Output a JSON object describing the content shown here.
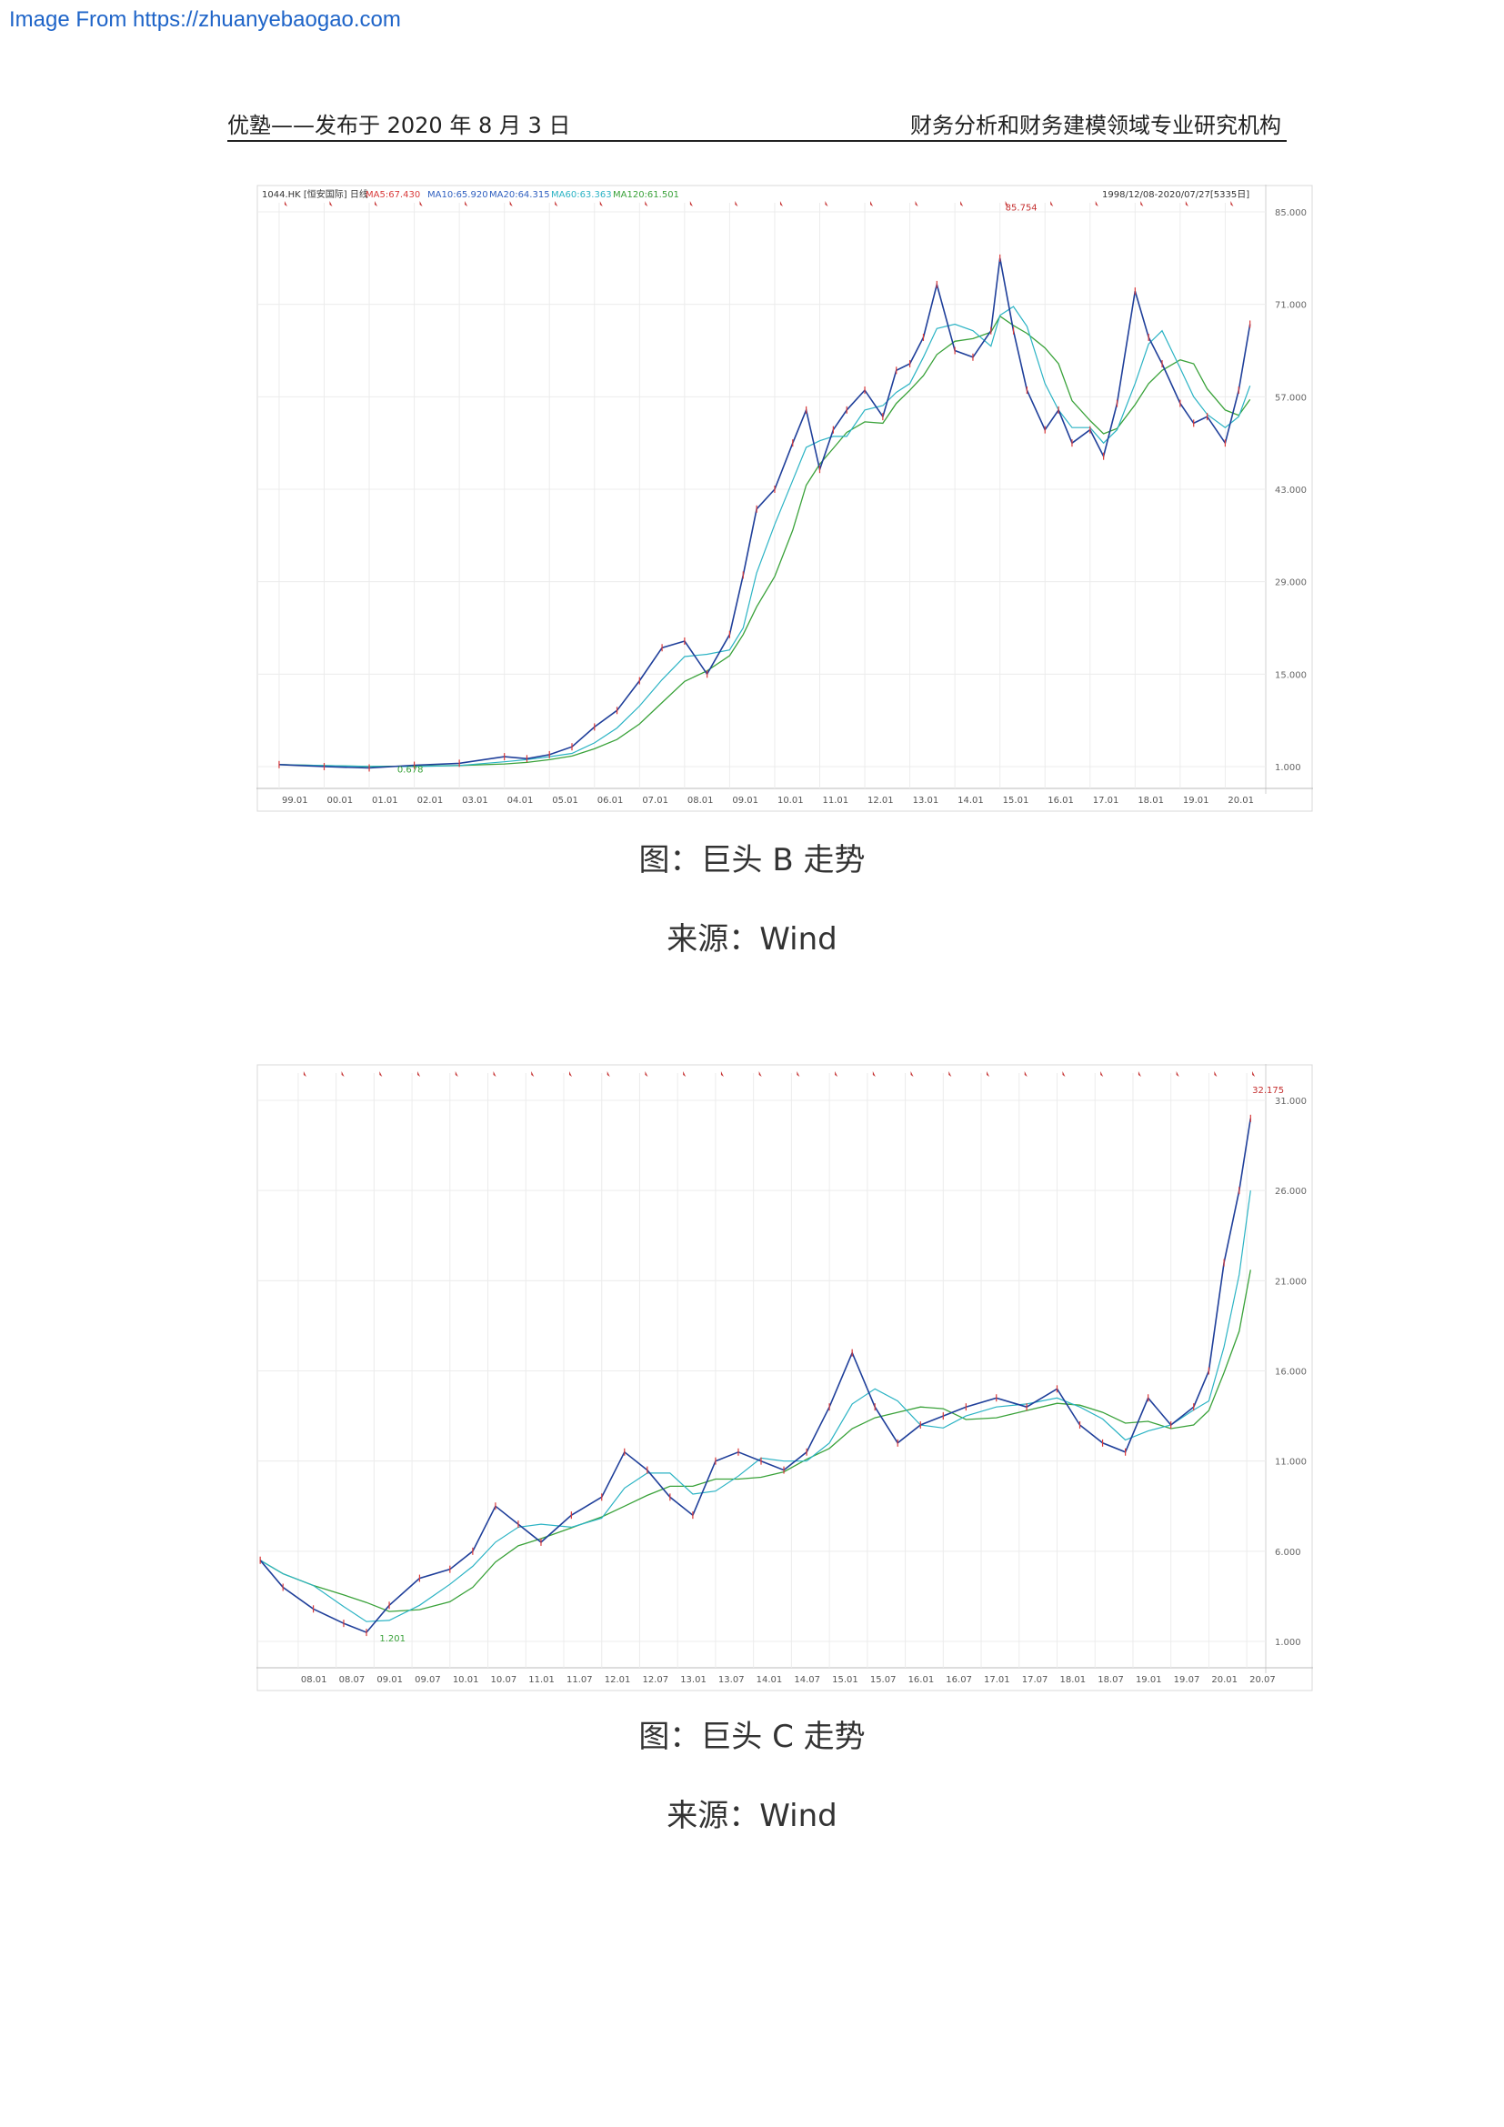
{
  "watermark": "Image From https://zhuanyebaogao.com",
  "header": {
    "left": "优塾——发布于 2020 年 8 月 3 日",
    "right": "财务分析和财务建模领域专业研究机构"
  },
  "figures": [
    {
      "caption": "图：巨头 B 走势",
      "source_label": "来源：",
      "source_value": "Wind"
    },
    {
      "caption": "图：巨头 C 走势",
      "source_label": "来源：",
      "source_value": "Wind"
    }
  ],
  "chart_data": [
    {
      "type": "line",
      "chart_header": {
        "ticker": "1044.HK",
        "name": "[恒安国际]",
        "period": "日线",
        "ma": [
          "MA5:67.430",
          "MA10:65.920",
          "MA20:64.315",
          "MA60:63.363",
          "MA120:61.501"
        ],
        "range": "1998/12/08-2020/07/27[5335日]"
      },
      "title": "",
      "xlabel": "",
      "ylabel": "",
      "x_ticks": [
        "99.01",
        "00.01",
        "01.01",
        "02.01",
        "03.01",
        "04.01",
        "05.01",
        "06.01",
        "07.01",
        "08.01",
        "09.01",
        "10.01",
        "11.01",
        "12.01",
        "13.01",
        "14.01",
        "15.01",
        "16.01",
        "17.01",
        "18.01",
        "19.01",
        "20.01"
      ],
      "y_ticks": [
        "85.000",
        "71.000",
        "57.000",
        "43.000",
        "29.000",
        "15.000",
        "1.000"
      ],
      "ylim": [
        1,
        85
      ],
      "x": [
        1999.0,
        2000.0,
        2001.0,
        2002.0,
        2003.0,
        2004.0,
        2004.5,
        2005.0,
        2005.5,
        2006.0,
        2006.5,
        2007.0,
        2007.5,
        2008.0,
        2008.5,
        2009.0,
        2009.3,
        2009.6,
        2010.0,
        2010.4,
        2010.7,
        2011.0,
        2011.3,
        2011.6,
        2012.0,
        2012.4,
        2012.7,
        2013.0,
        2013.3,
        2013.6,
        2014.0,
        2014.4,
        2014.8,
        2015.0,
        2015.3,
        2015.6,
        2016.0,
        2016.3,
        2016.6,
        2017.0,
        2017.3,
        2017.6,
        2018.0,
        2018.3,
        2018.6,
        2019.0,
        2019.3,
        2019.6,
        2020.0,
        2020.3,
        2020.55
      ],
      "series": [
        {
          "values": [
            1.3,
            1.0,
            0.8,
            1.2,
            1.5,
            2.5,
            2.2,
            2.8,
            4.0,
            7.0,
            9.5,
            14.0,
            19.0,
            20.0,
            15.0,
            21.0,
            30.0,
            40.0,
            43.0,
            50.0,
            55.0,
            46.0,
            52.0,
            55.0,
            58.0,
            54.0,
            61.0,
            62.0,
            66.0,
            74.0,
            64.0,
            63.0,
            67.0,
            78.0,
            67.0,
            58.0,
            52.0,
            55.0,
            50.0,
            52.0,
            48.0,
            56.0,
            73.0,
            66.0,
            62.0,
            56.0,
            53.0,
            54.0,
            50.0,
            58.0,
            68.0
          ]
        }
      ],
      "annotations": [
        {
          "text": "85.754",
          "x": 2015.0,
          "y": 85.754
        },
        {
          "text": "0.678",
          "x": 2001.5,
          "y": 0.678
        }
      ],
      "colors": {
        "price": "#1f3f9a",
        "ma_short": "#2bb3c4",
        "ma_long": "#3aa23a",
        "up": "#d93a3a"
      }
    },
    {
      "type": "line",
      "title": "",
      "xlabel": "",
      "ylabel": "",
      "x_ticks": [
        "08.01",
        "08.07",
        "09.01",
        "09.07",
        "10.01",
        "10.07",
        "11.01",
        "11.07",
        "12.01",
        "12.07",
        "13.01",
        "13.07",
        "14.01",
        "14.07",
        "15.01",
        "15.07",
        "16.01",
        "16.07",
        "17.01",
        "17.07",
        "18.01",
        "18.07",
        "19.01",
        "19.07",
        "20.01",
        "20.07"
      ],
      "y_ticks": [
        "31.000",
        "26.000",
        "21.000",
        "16.000",
        "11.000",
        "6.000",
        "1.000"
      ],
      "ylim": [
        1,
        31
      ],
      "x": [
        2007.5,
        2007.8,
        2008.2,
        2008.6,
        2008.9,
        2009.2,
        2009.6,
        2010.0,
        2010.3,
        2010.6,
        2010.9,
        2011.2,
        2011.6,
        2012.0,
        2012.3,
        2012.6,
        2012.9,
        2013.2,
        2013.5,
        2013.8,
        2014.1,
        2014.4,
        2014.7,
        2015.0,
        2015.3,
        2015.6,
        2015.9,
        2016.2,
        2016.5,
        2016.8,
        2017.2,
        2017.6,
        2018.0,
        2018.3,
        2018.6,
        2018.9,
        2019.2,
        2019.5,
        2019.8,
        2020.0,
        2020.2,
        2020.4,
        2020.55
      ],
      "series": [
        {
          "values": [
            5.5,
            4.0,
            2.8,
            2.0,
            1.5,
            3.0,
            4.5,
            5.0,
            6.0,
            8.5,
            7.5,
            6.5,
            8.0,
            9.0,
            11.5,
            10.5,
            9.0,
            8.0,
            11.0,
            11.5,
            11.0,
            10.5,
            11.5,
            14.0,
            17.0,
            14.0,
            12.0,
            13.0,
            13.5,
            14.0,
            14.5,
            14.0,
            15.0,
            13.0,
            12.0,
            11.5,
            14.5,
            13.0,
            14.0,
            16.0,
            22.0,
            26.0,
            30.0
          ]
        }
      ],
      "annotations": [
        {
          "text": "32.175",
          "x": 2020.5,
          "y": 32.175
        },
        {
          "text": "1.201",
          "x": 2009.0,
          "y": 1.201
        }
      ],
      "colors": {
        "price": "#1f3f9a",
        "ma_short": "#2bb3c4",
        "ma_long": "#3aa23a",
        "up": "#d93a3a"
      }
    }
  ]
}
